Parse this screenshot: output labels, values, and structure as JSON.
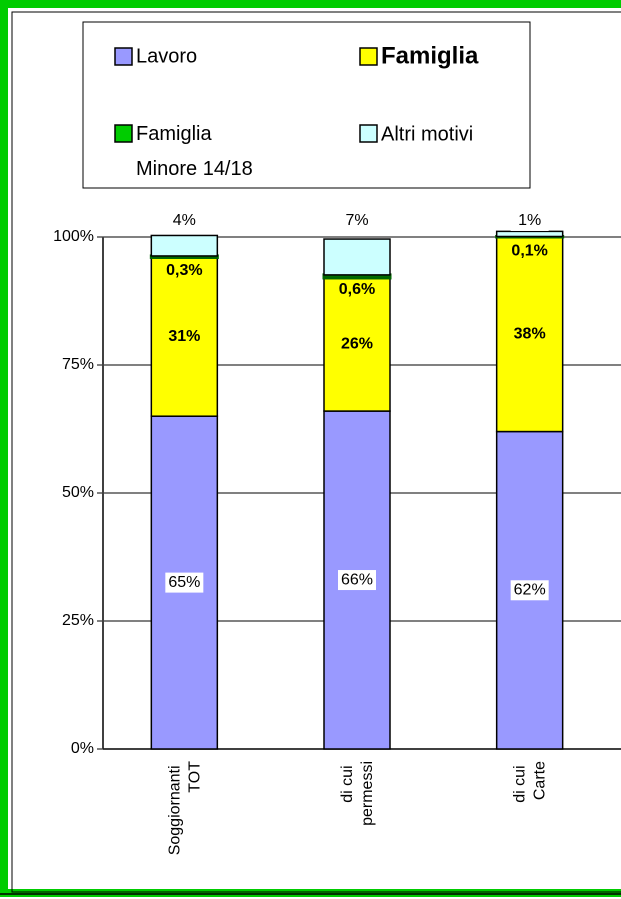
{
  "chart_data": {
    "type": "stacked_bar",
    "categories": [
      "Soggiornanti TOT",
      "di cui permessi",
      "di cui Carte"
    ],
    "series": [
      {
        "name": "Lavoro",
        "color": "#9999ff",
        "values": [
          65,
          66,
          62
        ],
        "value_labels": [
          "65%",
          "66%",
          "62%"
        ]
      },
      {
        "name": "Famiglia",
        "color": "#ffff00",
        "values": [
          31,
          26,
          38
        ],
        "value_labels": [
          "31%",
          "26%",
          "38%"
        ]
      },
      {
        "name": "Famiglia Minore 14/18",
        "color": "#00cc00",
        "values": [
          0.3,
          0.6,
          0.1
        ],
        "value_labels": [
          "0,3%",
          "0,6%",
          "0,1%"
        ]
      },
      {
        "name": "Altri motivi",
        "color": "#ccffff",
        "values": [
          4,
          7,
          1
        ],
        "value_labels": [
          "4%",
          "7%",
          "1%"
        ]
      }
    ],
    "ylim": [
      0,
      100
    ],
    "yticks": [
      {
        "value": 0,
        "label": "0%"
      },
      {
        "value": 25,
        "label": "25%"
      },
      {
        "value": 50,
        "label": "50%"
      },
      {
        "value": 75,
        "label": "75%"
      },
      {
        "value": 100,
        "label": "100%"
      }
    ],
    "grid": true
  }
}
